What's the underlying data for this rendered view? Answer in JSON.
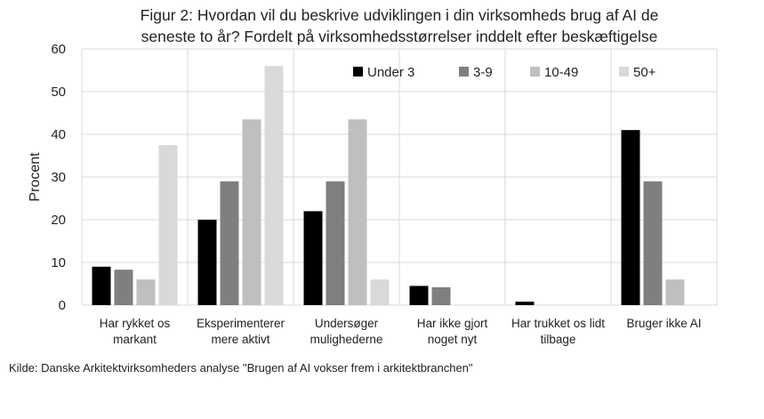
{
  "chart_data": {
    "type": "bar",
    "title_lines": [
      "Figur 2: Hvordan vil du beskrive udviklingen i din virksomheds brug af AI de",
      "seneste to år? Fordelt på virksomhedsstørrelser inddelt efter beskæftigelse"
    ],
    "ylabel": "Procent",
    "xlabel": "",
    "ylim": [
      0,
      60
    ],
    "yticks": [
      "0",
      "10",
      "20",
      "30",
      "40",
      "50",
      "60"
    ],
    "grid": true,
    "legend_position": "top-right",
    "categories": [
      [
        "Har rykket os",
        "markant"
      ],
      [
        "Eksperimenterer",
        "mere aktivt"
      ],
      [
        "Undersøger",
        "mulighederne"
      ],
      [
        "Har ikke gjort",
        "noget nyt"
      ],
      [
        "Har trukket os lidt",
        "tilbage"
      ],
      [
        "Bruger ikke AI"
      ]
    ],
    "series": [
      {
        "name": "Under 3",
        "color": "#000000",
        "values": [
          9,
          20,
          22,
          4.5,
          0.8,
          41
        ]
      },
      {
        "name": "3-9",
        "color": "#7f7f7f",
        "values": [
          8.3,
          29,
          29,
          4.2,
          0,
          29
        ]
      },
      {
        "name": "10-49",
        "color": "#bfbfbf",
        "values": [
          6,
          43.5,
          43.5,
          0,
          0,
          6
        ]
      },
      {
        "name": "50+",
        "color": "#d9d9d9",
        "values": [
          37.5,
          56,
          6,
          0,
          0,
          0
        ]
      }
    ],
    "source": "Kilde: Danske Arkitektvirksomheders analyse \"Brugen af AI vokser frem i arkitektbranchen\""
  }
}
